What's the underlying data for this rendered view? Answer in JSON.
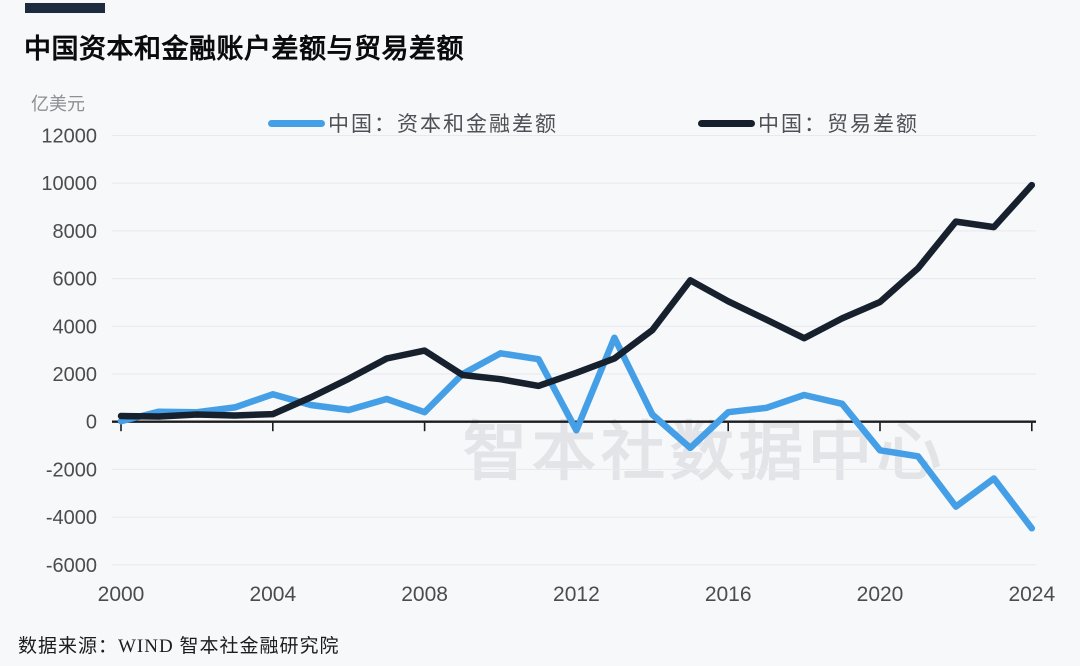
{
  "header": {
    "title": "中国资本和金融账户差额与贸易差额",
    "accent_bar_color": "#1c2b3d"
  },
  "footer": {
    "source": "数据来源：WIND 智本社金融研究院"
  },
  "chart_data": {
    "type": "line",
    "title": "中国资本和金融账户差额与贸易差额",
    "unit_label": "亿美元",
    "watermark": "智本社数据中心",
    "x": [
      2000,
      2001,
      2002,
      2003,
      2004,
      2005,
      2006,
      2007,
      2008,
      2009,
      2010,
      2011,
      2012,
      2013,
      2014,
      2015,
      2016,
      2017,
      2018,
      2019,
      2020,
      2021,
      2022,
      2023,
      2024
    ],
    "series": [
      {
        "name": "中国：资本和金融差额",
        "color": "#459fe6",
        "values": [
          20,
          420,
          400,
          600,
          1150,
          700,
          490,
          950,
          400,
          2000,
          2870,
          2620,
          -360,
          3520,
          300,
          -1100,
          400,
          580,
          1120,
          750,
          -1200,
          -1450,
          -3560,
          -2380,
          -4470
        ]
      },
      {
        "name": "中国：贸易差额",
        "color": "#17202d",
        "values": [
          240,
          220,
          300,
          260,
          320,
          1020,
          1800,
          2650,
          2980,
          1960,
          1780,
          1500,
          2050,
          2650,
          3840,
          5930,
          5050,
          4280,
          3500,
          4330,
          5020,
          6430,
          8390,
          8160,
          9920
        ]
      }
    ],
    "ylim": [
      -6000,
      12000
    ],
    "y_ticks": [
      12000,
      10000,
      8000,
      6000,
      4000,
      2000,
      0,
      -2000,
      -4000,
      -6000
    ],
    "x_ticks": [
      2000,
      2004,
      2008,
      2012,
      2016,
      2020,
      2024
    ],
    "grid": true,
    "legend_position": "top",
    "axis_label_color": "#4c4c50",
    "gridline_color": "#e8e9ed",
    "zero_axis_color": "#1c1c1e"
  }
}
